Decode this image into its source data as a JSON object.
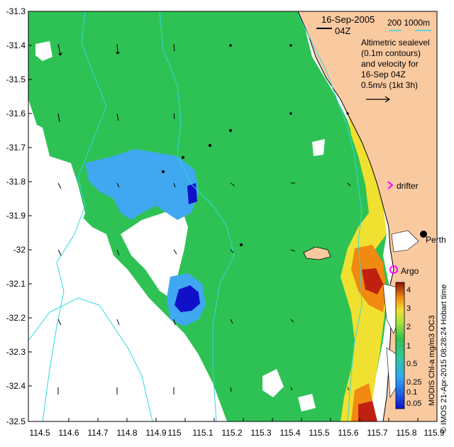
{
  "header": {
    "date": "16-Sep-2005",
    "time": "04Z",
    "depth_contours": "200  1000m",
    "legend_lines": [
      "Altimetric sealevel",
      "(0.1m contours)",
      "and velocity for",
      "16-Sep 04Z",
      "0.5m/s (1kt 3h)"
    ]
  },
  "axes": {
    "x_ticks": [
      "114.5",
      "114.6",
      "114.7",
      "114.8",
      "114.9",
      "115",
      "115.1",
      "115.2",
      "115.3",
      "115.4",
      "115.5",
      "115.6",
      "115.7",
      "115.8",
      "115.9"
    ],
    "y_ticks": [
      "-31.3",
      "-31.4",
      "-31.5",
      "-31.6",
      "-31.7",
      "-31.8",
      "-31.9",
      "-32",
      "-32.1",
      "-32.2",
      "-32.3",
      "-32.4",
      "-32.5"
    ],
    "xlim": [
      114.5,
      115.9
    ],
    "ylim": [
      -32.5,
      -31.3
    ]
  },
  "markers": {
    "drifter_label": "drifter",
    "argo_label": "Argo",
    "city_label": "Perth"
  },
  "colorbar": {
    "ticks": [
      "4",
      "3",
      "2",
      "1",
      "0.5",
      "0.25",
      "0.1",
      "0.05"
    ],
    "title": "MODIS Chl-a mg/m3 OC3"
  },
  "credit": "© IMOS 21-Apr-2015 08:28:24 Hobart time",
  "colors": {
    "land": "#f9c9a0",
    "ocean_green": "#2ec254",
    "ocean_light": "#5bd36a",
    "blue": "#3fa8f0",
    "deep_blue": "#1010c8",
    "yellow": "#f0e030",
    "orange": "#f08a10",
    "red": "#c02010",
    "contour": "#30d8e0",
    "drifter": "#ff00ff"
  }
}
